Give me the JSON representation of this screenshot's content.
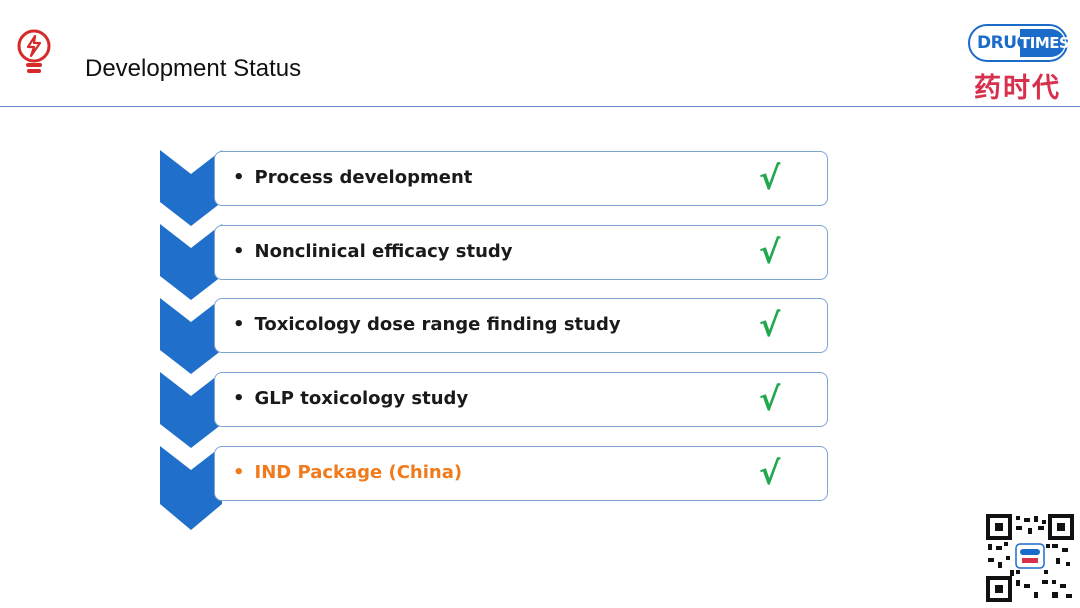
{
  "header": {
    "title": "Development Status",
    "icon": "lightbulb-icon"
  },
  "logo": {
    "word_left": "DRUG",
    "word_right": "TIMES",
    "chinese": "药时代",
    "colors": {
      "blue": "#1b6cc9",
      "red": "#d6304c"
    }
  },
  "steps": [
    {
      "label": "Process development",
      "check": "√",
      "highlight": false
    },
    {
      "label": "Nonclinical efficacy study",
      "check": "√",
      "highlight": false
    },
    {
      "label": "Toxicology dose range finding study",
      "check": "√",
      "highlight": false
    },
    {
      "label": "GLP toxicology study",
      "check": "√",
      "highlight": false
    },
    {
      "label": "IND Package (China)",
      "check": "√",
      "highlight": true
    }
  ],
  "bullet": "•",
  "colors": {
    "chevron": "#1f6fcb",
    "box_border": "#7fa4d4",
    "check": "#1fa84d",
    "highlight": "#f07b1d",
    "icon_red": "#d62a2a",
    "rule": "#6a8fc8"
  }
}
